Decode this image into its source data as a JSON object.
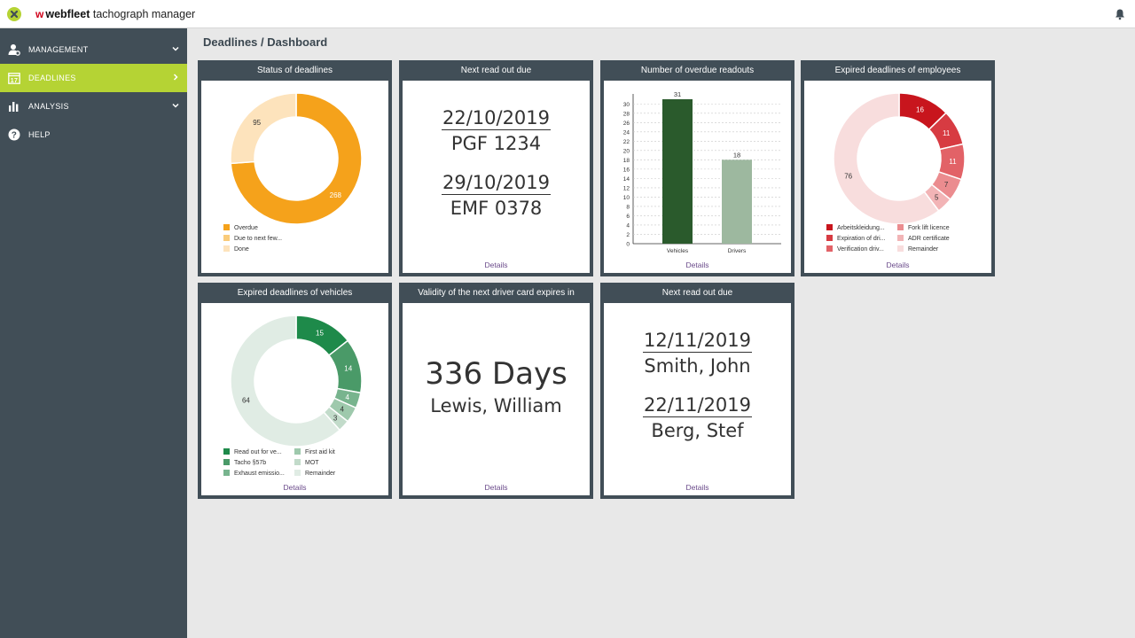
{
  "app": {
    "brand_mark": "w",
    "brand_name": "webfleet",
    "brand_product": "tachograph manager"
  },
  "sidebar": {
    "items": [
      {
        "label": "MANAGEMENT",
        "icon": "user-gear-icon",
        "active": false
      },
      {
        "label": "DEADLINES",
        "icon": "calendar-17-icon",
        "active": true
      },
      {
        "label": "ANALYSIS",
        "icon": "bar-chart-icon",
        "active": false
      },
      {
        "label": "HELP",
        "icon": "help-icon",
        "active": false
      }
    ]
  },
  "breadcrumb": {
    "parent": "Deadlines",
    "separator": "/",
    "current": "Dashboard"
  },
  "cards": {
    "status": {
      "title": "Status of deadlines",
      "legend": [
        "Overdue",
        "Due to next few...",
        "Done"
      ]
    },
    "next_readout": {
      "title": "Next read out due",
      "entries": [
        {
          "date": "22/10/2019",
          "name": "PGF 1234"
        },
        {
          "date": "29/10/2019",
          "name": "EMF 0378"
        }
      ],
      "details": "Details"
    },
    "overdue_readouts": {
      "title": "Number of overdue readouts",
      "details": "Details"
    },
    "employees": {
      "title": "Expired deadlines of employees",
      "legend": [
        "Arbeitskleidung...",
        "Expiration of dri...",
        "Verification driv...",
        "Fork lift licence",
        "ADR certificate",
        "Remainder"
      ],
      "details": "Details"
    },
    "vehicles": {
      "title": "Expired deadlines of vehicles",
      "legend": [
        "Read out for ve...",
        "Tacho §57b",
        "Exhaust emissio...",
        "First aid kit",
        "MOT",
        "Remainder"
      ],
      "details": "Details"
    },
    "driver_card": {
      "title": "Validity of the next driver card expires in",
      "days": "336 Days",
      "driver": "Lewis, William",
      "details": "Details"
    },
    "next_readout_drivers": {
      "title": "Next read out due",
      "entries": [
        {
          "date": "12/11/2019",
          "name": "Smith, John"
        },
        {
          "date": "22/11/2019",
          "name": "Berg, Stef"
        }
      ],
      "details": "Details"
    }
  },
  "chart_data": [
    {
      "id": "status",
      "type": "pie",
      "title": "Status of deadlines",
      "categories": [
        "Overdue",
        "Due to next few...",
        "Done"
      ],
      "values": [
        268,
        0,
        95
      ],
      "colors": [
        "#f5a21b",
        "#f9cb7a",
        "#fde3bc"
      ],
      "donut": true
    },
    {
      "id": "overdue",
      "type": "bar",
      "title": "Number of overdue readouts",
      "categories": [
        "Vehicles",
        "Drivers"
      ],
      "values": [
        31,
        18
      ],
      "colors": [
        "#2a5a2c",
        "#9db89f"
      ],
      "yticks": [
        0,
        2,
        4,
        6,
        8,
        10,
        12,
        14,
        16,
        18,
        20,
        22,
        24,
        26,
        28,
        30
      ],
      "ylim": [
        0,
        31
      ],
      "grid": true
    },
    {
      "id": "employees",
      "type": "pie",
      "title": "Expired deadlines of employees",
      "categories": [
        "Arbeitskleidung...",
        "Expiration of dri...",
        "Verification driv...",
        "Fork lift licence",
        "ADR certificate",
        "Remainder"
      ],
      "values": [
        16,
        11,
        11,
        7,
        5,
        76
      ],
      "colors": [
        "#c8151d",
        "#d73b42",
        "#e26267",
        "#eb8c8f",
        "#f2b4b6",
        "#f8dddd"
      ],
      "donut": true
    },
    {
      "id": "vehicles",
      "type": "pie",
      "title": "Expired deadlines of vehicles",
      "categories": [
        "Read out for ve...",
        "Tacho §57b",
        "Exhaust emissio...",
        "First aid kit",
        "MOT",
        "Remainder"
      ],
      "values": [
        15,
        14,
        4,
        4,
        3,
        64
      ],
      "colors": [
        "#1e8a4a",
        "#4a9a68",
        "#78b48e",
        "#9ec9ac",
        "#c2dbca",
        "#e0ece4"
      ],
      "donut": true
    }
  ]
}
